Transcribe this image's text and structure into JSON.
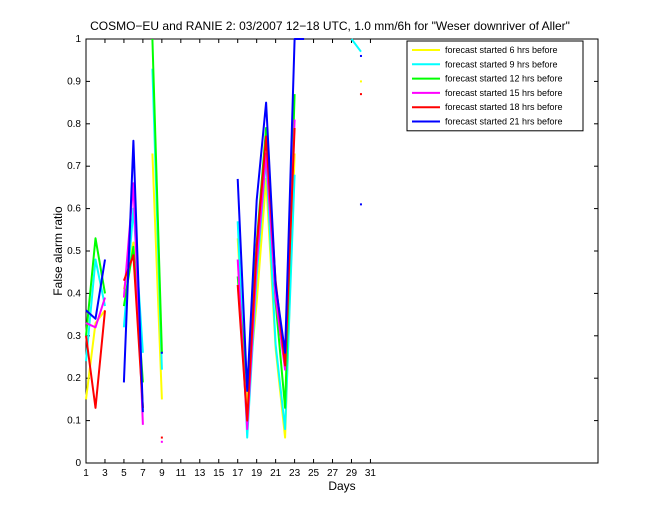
{
  "chart_data": {
    "type": "line",
    "title": "COSMO−EU and RANIE 2: 03/2007 12−18 UTC, 1.0 mm/6h for \"Weser downriver of Aller\"",
    "xlabel": "Days",
    "ylabel": "False alarm ratio",
    "xlim": [
      1,
      55
    ],
    "ylim": [
      0,
      1
    ],
    "xticks": [
      1,
      3,
      5,
      7,
      9,
      11,
      13,
      15,
      17,
      19,
      21,
      23,
      25,
      27,
      29,
      31
    ],
    "yticks": [
      0,
      0.1,
      0.2,
      0.3,
      0.4,
      0.5,
      0.6,
      0.7,
      0.8,
      0.9,
      1
    ],
    "ytick_labels": [
      "0",
      "0.1",
      "0.2",
      "0.3",
      "0.4",
      "0.5",
      "0.6",
      "0.7",
      "0.8",
      "0.9",
      "1"
    ],
    "grid": false,
    "legend_position": "top-right",
    "series": [
      {
        "name": "forecast started 6 hrs before",
        "color": "#ffff00",
        "segments": [
          [
            [
              1,
              0.15
            ],
            [
              2,
              0.33
            ],
            [
              3,
              0.36
            ]
          ],
          [
            [
              5,
              0.41
            ],
            [
              6,
              0.52
            ],
            [
              7,
              0.13
            ]
          ],
          [
            [
              8,
              0.73
            ],
            [
              9,
              0.15
            ]
          ],
          [
            [
              17,
              0.53
            ],
            [
              18,
              0.14
            ],
            [
              19,
              0.38
            ],
            [
              20,
              0.67
            ],
            [
              21,
              0.27
            ],
            [
              22,
              0.06
            ],
            [
              23,
              0.73
            ]
          ]
        ],
        "points": [
          [
            30,
            0.9
          ]
        ]
      },
      {
        "name": "forecast started 9 hrs before",
        "color": "#00ffff",
        "segments": [
          [
            [
              1,
              0.24
            ],
            [
              2,
              0.48
            ],
            [
              3,
              0.37
            ]
          ],
          [
            [
              5,
              0.32
            ],
            [
              6,
              0.6
            ],
            [
              7,
              0.26
            ]
          ],
          [
            [
              8,
              0.93
            ],
            [
              9,
              0.22
            ]
          ],
          [
            [
              17,
              0.57
            ],
            [
              18,
              0.06
            ],
            [
              19,
              0.44
            ],
            [
              20,
              0.72
            ],
            [
              21,
              0.28
            ],
            [
              22,
              0.08
            ],
            [
              23,
              0.68
            ]
          ],
          [
            [
              29,
              1.0
            ],
            [
              30,
              0.97
            ]
          ]
        ],
        "points": []
      },
      {
        "name": "forecast started 12 hrs before",
        "color": "#00ff00",
        "segments": [
          [
            [
              1,
              0.3
            ],
            [
              2,
              0.53
            ],
            [
              3,
              0.4
            ]
          ],
          [
            [
              5,
              0.37
            ],
            [
              6,
              0.51
            ],
            [
              7,
              0.19
            ]
          ],
          [
            [
              8,
              1.0
            ],
            [
              9,
              0.26
            ]
          ],
          [
            [
              17,
              0.44
            ],
            [
              18,
              0.18
            ],
            [
              19,
              0.52
            ],
            [
              20,
              0.79
            ],
            [
              21,
              0.38
            ],
            [
              22,
              0.13
            ],
            [
              23,
              0.87
            ]
          ]
        ],
        "points": []
      },
      {
        "name": "forecast started 15 hrs before",
        "color": "#ff00ff",
        "segments": [
          [
            [
              1,
              0.33
            ],
            [
              2,
              0.32
            ],
            [
              3,
              0.39
            ]
          ],
          [
            [
              5,
              0.39
            ],
            [
              6,
              0.66
            ],
            [
              7,
              0.09
            ]
          ],
          [
            [
              17,
              0.48
            ],
            [
              18,
              0.08
            ],
            [
              19,
              0.47
            ],
            [
              20,
              0.73
            ],
            [
              21,
              0.39
            ],
            [
              22,
              0.22
            ],
            [
              23,
              0.81
            ]
          ]
        ],
        "points": [
          [
            9,
            0.05
          ]
        ]
      },
      {
        "name": "forecast started 18 hrs before",
        "color": "#ff0000",
        "segments": [
          [
            [
              1,
              0.3
            ],
            [
              2,
              0.13
            ],
            [
              3,
              0.36
            ]
          ],
          [
            [
              5,
              0.43
            ],
            [
              6,
              0.49
            ],
            [
              7,
              0.13
            ]
          ],
          [
            [
              17,
              0.42
            ],
            [
              18,
              0.1
            ],
            [
              19,
              0.51
            ],
            [
              20,
              0.77
            ],
            [
              21,
              0.43
            ],
            [
              22,
              0.23
            ],
            [
              23,
              0.79
            ]
          ]
        ],
        "points": [
          [
            9,
            0.06
          ],
          [
            30,
            0.87
          ]
        ]
      },
      {
        "name": "forecast started 21 hrs before",
        "color": "#0000ff",
        "segments": [
          [
            [
              1,
              0.36
            ],
            [
              2,
              0.34
            ],
            [
              3,
              0.48
            ]
          ],
          [
            [
              5,
              0.19
            ],
            [
              6,
              0.76
            ],
            [
              7,
              0.12
            ]
          ],
          [
            [
              17,
              0.67
            ],
            [
              18,
              0.17
            ],
            [
              19,
              0.62
            ],
            [
              20,
              0.85
            ],
            [
              21,
              0.42
            ],
            [
              22,
              0.26
            ],
            [
              23,
              1.0
            ],
            [
              24,
              1.0
            ]
          ]
        ],
        "points": [
          [
            9,
            0.26
          ],
          [
            30,
            0.61
          ],
          [
            30,
            0.96
          ]
        ]
      }
    ]
  }
}
